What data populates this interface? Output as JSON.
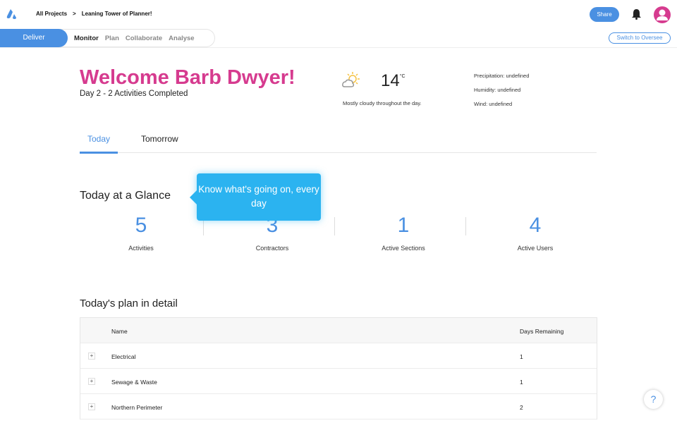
{
  "header": {
    "breadcrumb": [
      "All Projects",
      ">",
      "Leaning Tower of Planner!"
    ],
    "share_label": "Share",
    "switch_label": "Switch to Oversee"
  },
  "nav": {
    "active_mode": "Deliver",
    "items": [
      "Monitor",
      "Plan",
      "Collaborate",
      "Analyse"
    ]
  },
  "welcome": {
    "title": "Welcome Barb Dwyer!",
    "subtitle": "Day 2 - 2 Activities Completed"
  },
  "weather": {
    "icon": "partly-cloudy-icon",
    "temp": "14",
    "unit": "°C",
    "desc": "Mostly cloudy throughout the day.",
    "precipitation": "Precipitation: undefined",
    "humidity": "Humidity: undefined",
    "wind": "Wind: undefined"
  },
  "tabs": [
    "Today",
    "Tomorrow"
  ],
  "glance": {
    "title": "Today at a Glance",
    "tooltip": "Know what's going on, every day",
    "stats": [
      {
        "value": "5",
        "label": "Activities"
      },
      {
        "value": "3",
        "label": "Contractors"
      },
      {
        "value": "1",
        "label": "Active Sections"
      },
      {
        "value": "4",
        "label": "Active Users"
      }
    ]
  },
  "plan": {
    "title": "Today's plan in detail",
    "columns": [
      "Name",
      "Days Remaining"
    ],
    "rows": [
      {
        "name": "Electrical",
        "days": "1"
      },
      {
        "name": "Sewage & Waste",
        "days": "1"
      },
      {
        "name": "Northern Perimeter",
        "days": "2"
      }
    ]
  },
  "help_label": "?",
  "colors": {
    "accent": "#4a90e2",
    "brand_pink": "#d63b8f",
    "tooltip": "#2bb3f0"
  }
}
